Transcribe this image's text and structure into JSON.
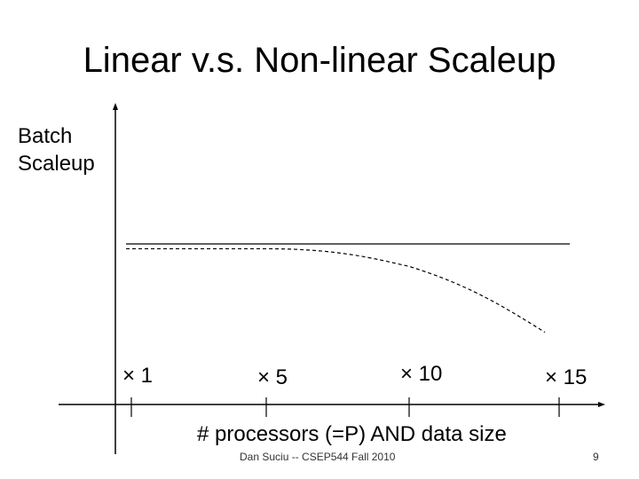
{
  "slide": {
    "title": "Linear v.s. Non-linear Scaleup",
    "footer": "Dan Suciu -- CSEP544 Fall 2010",
    "page_number": "9"
  },
  "chart_data": {
    "type": "line",
    "title": "Linear v.s. Non-linear Scaleup",
    "ylabel": "Batch Scaleup",
    "ylabel_lines": [
      "Batch",
      "Scaleup"
    ],
    "xlabel": "# processors (=P) AND data size",
    "x": [
      1,
      5,
      10,
      15
    ],
    "x_tick_labels": [
      "× 1",
      "× 5",
      "× 10",
      "× 15"
    ],
    "ylim": [
      0,
      1.2
    ],
    "grid": false,
    "legend": "none",
    "series": [
      {
        "style": "solid",
        "color": "#000000",
        "values": [
          1,
          1,
          1,
          1
        ]
      },
      {
        "style": "dashed",
        "color": "#000000",
        "values": [
          0.97,
          0.97,
          0.86,
          0.45
        ]
      }
    ]
  }
}
